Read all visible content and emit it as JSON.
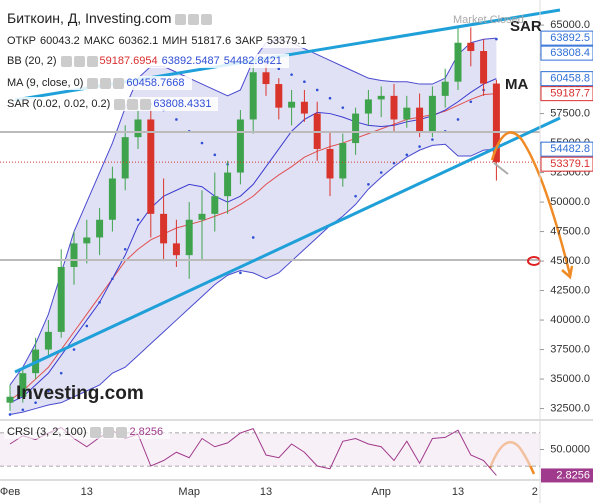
{
  "chart_data": {
    "type": "candlestick",
    "title": "Биткоин, Д, Investing.com",
    "market_status": "Market Closed",
    "logo": "Investing.com",
    "ohlc_legend": [
      {
        "label": "ОТКР",
        "value": 60043.2
      },
      {
        "label": "МАКС",
        "value": 60362.1
      },
      {
        "label": "МИН",
        "value": 51817.6
      },
      {
        "label": "ЗАКР",
        "value": 53379.1
      }
    ],
    "indicators": [
      {
        "name": "BB (20, 2)",
        "values": [
          59187.6954,
          63892.5487,
          54482.8421
        ],
        "colors": [
          "#d92e2e",
          "#2f4fd6",
          "#2f4fd6"
        ]
      },
      {
        "name": "MA (9, close, 0)",
        "values": [
          60458.7668
        ],
        "colors": [
          "#2f4fd6"
        ]
      },
      {
        "name": "SAR (0.02, 0.02, 0.2)",
        "values": [
          63808.4331
        ],
        "colors": [
          "#2f4fd6"
        ]
      }
    ],
    "annotations": [
      "SAR",
      "MA"
    ],
    "categories": [
      "Фев",
      null,
      null,
      null,
      null,
      null,
      "13",
      null,
      null,
      null,
      null,
      null,
      null,
      null,
      "Мар",
      null,
      null,
      null,
      null,
      null,
      "13",
      null,
      null,
      null,
      null,
      null,
      null,
      null,
      null,
      "Апр",
      null,
      null,
      null,
      null,
      null,
      "13",
      null,
      null,
      null,
      null,
      null,
      "2"
    ],
    "open": [
      33000,
      33500,
      35500,
      37500,
      39000,
      44500,
      46500,
      47000,
      48500,
      52000,
      55500,
      57000,
      49000,
      46500,
      45500,
      48500,
      49000,
      50500,
      52500,
      57000,
      61000,
      60000,
      58000,
      58500,
      57500,
      54500,
      52000,
      55000,
      57500,
      58700,
      59000,
      57000,
      58000,
      56000,
      59000,
      60200,
      63500,
      62800,
      60043.2,
      null,
      null,
      null
    ],
    "high": [
      34500,
      36000,
      38500,
      40000,
      46000,
      47500,
      48500,
      49500,
      53000,
      56500,
      58300,
      57800,
      52000,
      48500,
      50000,
      51000,
      52500,
      53500,
      57800,
      61800,
      61700,
      60500,
      59500,
      59500,
      58500,
      56000,
      55800,
      58000,
      59500,
      59800,
      60000,
      59000,
      59200,
      59800,
      61300,
      64800,
      64800,
      63800,
      60362.1,
      null,
      null,
      null
    ],
    "low": [
      32300,
      33000,
      35000,
      37000,
      38500,
      43000,
      44800,
      45500,
      47500,
      51000,
      54500,
      47000,
      45000,
      44500,
      43500,
      45000,
      47500,
      49000,
      51500,
      55800,
      59000,
      57000,
      56500,
      56800,
      53500,
      50500,
      51300,
      54000,
      56500,
      57200,
      56000,
      56300,
      55500,
      55500,
      58000,
      59500,
      61500,
      59000,
      51817.6,
      null,
      null,
      null
    ],
    "close": [
      33500,
      35500,
      37500,
      39000,
      44500,
      46500,
      47000,
      48500,
      52000,
      55500,
      57000,
      49000,
      46500,
      45500,
      48500,
      49000,
      50500,
      52500,
      57000,
      61000,
      60000,
      58000,
      58500,
      57500,
      54500,
      52000,
      55000,
      57500,
      58700,
      59000,
      57000,
      58000,
      56000,
      59000,
      60200,
      63500,
      62800,
      60043.2,
      53379.1,
      null,
      null,
      null
    ],
    "up_color": "#3fa34d",
    "down_color": "#d9342b",
    "bb_mid": [
      33200,
      34000,
      35000,
      36000,
      37500,
      39000,
      40500,
      42000,
      43500,
      45000,
      46000,
      46800,
      47300,
      47800,
      48100,
      48400,
      48800,
      49200,
      49800,
      50500,
      51500,
      52300,
      53000,
      53800,
      54300,
      54700,
      55000,
      55400,
      55800,
      56200,
      56600,
      57000,
      57200,
      57400,
      57700,
      58200,
      58700,
      59100,
      59187.7,
      null,
      null,
      null
    ],
    "bb_upper": [
      34500,
      36000,
      38000,
      40500,
      44000,
      47500,
      50000,
      52500,
      55000,
      58000,
      60500,
      61500,
      61500,
      61000,
      60500,
      60000,
      59500,
      59000,
      59500,
      62000,
      63500,
      63800,
      63500,
      63000,
      62500,
      62000,
      61500,
      61000,
      60500,
      60300,
      60200,
      60200,
      60000,
      60000,
      60500,
      62500,
      63500,
      63800,
      63892.5,
      null,
      null,
      null
    ],
    "bb_lower": [
      32000,
      32200,
      32500,
      32800,
      33000,
      33500,
      34000,
      34500,
      35500,
      36000,
      37000,
      38000,
      39000,
      40000,
      41000,
      42000,
      43000,
      43800,
      44200,
      44000,
      43500,
      44000,
      45000,
      46000,
      47000,
      48000,
      48800,
      49800,
      51100,
      52100,
      53000,
      53800,
      54400,
      54800,
      54900,
      53900,
      53900,
      54400,
      54482.8,
      null,
      null,
      null
    ],
    "ma": [
      33000,
      33500,
      34500,
      35500,
      37000,
      38500,
      40000,
      41500,
      43500,
      45500,
      48000,
      49500,
      50500,
      51000,
      51500,
      51300,
      50500,
      50000,
      50500,
      51500,
      53000,
      54500,
      56000,
      57000,
      57600,
      57500,
      57200,
      56800,
      56500,
      56400,
      56500,
      56800,
      57000,
      57300,
      57800,
      58500,
      59300,
      60000,
      60458.8,
      null,
      null,
      null
    ],
    "sar": [
      32000,
      32400,
      33000,
      34000,
      35500,
      37500,
      39500,
      41500,
      43500,
      46000,
      48500,
      58300,
      57800,
      57000,
      56000,
      55000,
      54000,
      53200,
      44000,
      47000,
      61800,
      61300,
      60800,
      60200,
      59500,
      58800,
      58000,
      50500,
      51500,
      52500,
      53300,
      54000,
      54700,
      55300,
      56000,
      57000,
      58500,
      59500,
      63808.4,
      null,
      null,
      null
    ],
    "ylim": [
      31700,
      66700
    ],
    "yticks": [
      {
        "value": 32500,
        "label": "32500.0"
      },
      {
        "value": 35000,
        "label": "35000.0"
      },
      {
        "value": 37500,
        "label": "37500.0"
      },
      {
        "value": 40000,
        "label": "40000.0"
      },
      {
        "value": 42500,
        "label": "42500.0"
      },
      {
        "value": 45000,
        "label": "45000.0"
      },
      {
        "value": 47500,
        "label": "47500.0"
      },
      {
        "value": 50000,
        "label": "50000.0"
      },
      {
        "value": 52500,
        "label": "52500.0"
      },
      {
        "value": 55000,
        "label": "55000.0"
      },
      {
        "value": 57500,
        "label": "57500.0"
      },
      {
        "value": 60000,
        "label": "60000.0"
      },
      {
        "value": 62500,
        "label": "62500.0"
      },
      {
        "value": 65000,
        "label": "65000.0"
      }
    ],
    "price_tags": [
      {
        "value": 63892.5,
        "color": "#2f6fd6"
      },
      {
        "value": 63808.4,
        "color": "#2f6fd6"
      },
      {
        "value": 60458.8,
        "color": "#2f6fd6"
      },
      {
        "value": 59187.7,
        "color": "#d92e2e"
      },
      {
        "value": 54482.8,
        "color": "#2f6fd6"
      },
      {
        "value": 53379.1,
        "color": "#d92e2e"
      }
    ],
    "rsi": {
      "name": "CRSI (3, 2, 100)",
      "last": 2.8256,
      "color": "#a03a8c",
      "values": [
        60,
        75,
        68,
        80,
        90,
        70,
        55,
        72,
        85,
        70,
        78,
        20,
        30,
        45,
        35,
        70,
        55,
        62,
        80,
        88,
        40,
        35,
        60,
        45,
        20,
        15,
        65,
        70,
        60,
        55,
        30,
        65,
        25,
        70,
        72,
        85,
        40,
        30,
        2.8256,
        null,
        null,
        null
      ],
      "ylim": [
        0,
        100
      ],
      "yticks": [
        {
          "value": 50,
          "label": "50.0000"
        }
      ],
      "levels": [
        80,
        20
      ]
    }
  }
}
